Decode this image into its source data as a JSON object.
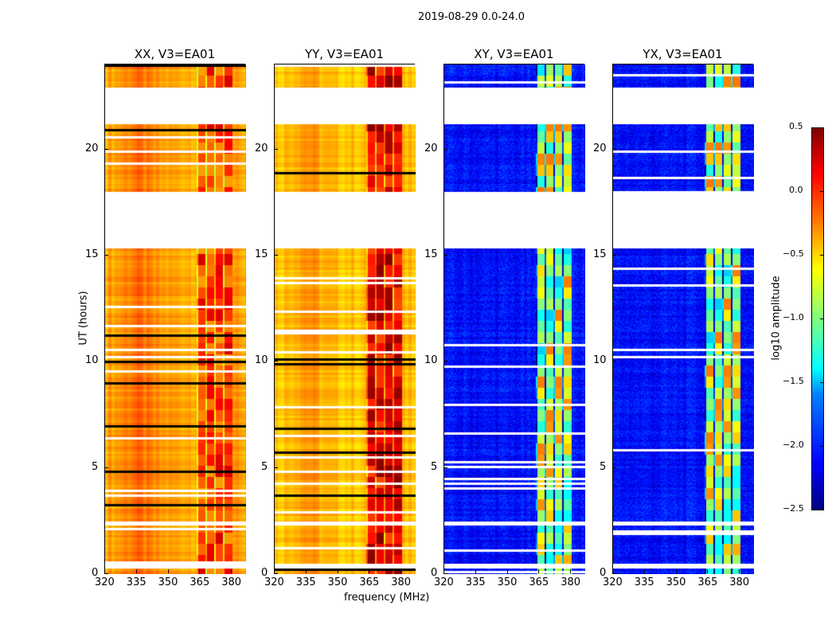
{
  "figure_title": "2019-08-29 0.0-24.0",
  "chart_data": {
    "type": "heatmap",
    "title": "2019-08-29 0.0-24.0",
    "xlabel": "frequency (MHz)",
    "ylabel": "UT (hours)",
    "xlim": [
      320,
      386.7
    ],
    "ylim": [
      0,
      24
    ],
    "xticks": [
      "320",
      "335",
      "350",
      "365",
      "380"
    ],
    "yticks": [
      "0",
      "5",
      "10",
      "15",
      "20"
    ],
    "panels": [
      {
        "title": "XX, V3=EA01",
        "kind": "parallel",
        "base_log_amp": -0.35,
        "band_log_amp": -0.05
      },
      {
        "title": "YY, V3=EA01",
        "kind": "parallel",
        "base_log_amp": -0.45,
        "band_log_amp": 0.2
      },
      {
        "title": "XY, V3=EA01",
        "kind": "cross",
        "base_log_amp": -2.1,
        "band_log_amp": -0.9
      },
      {
        "title": "YX, V3=EA01",
        "kind": "cross",
        "base_log_amp": -2.1,
        "band_log_amp": -0.9
      }
    ],
    "strong_band_MHz": [
      363,
      380
    ],
    "flagged_hours": [
      [
        0.3,
        0.5
      ],
      [
        2.3,
        2.5
      ],
      [
        15.35,
        18.0
      ],
      [
        21.2,
        22.95
      ]
    ],
    "colorbar": {
      "label": "log10 amplitude",
      "range": [
        -2.5,
        0.5
      ],
      "ticks": [
        "0.5",
        "0.0",
        "−0.5",
        "−1.0",
        "−1.5",
        "−2.0",
        "−2.5"
      ],
      "colormap": "jet"
    }
  }
}
